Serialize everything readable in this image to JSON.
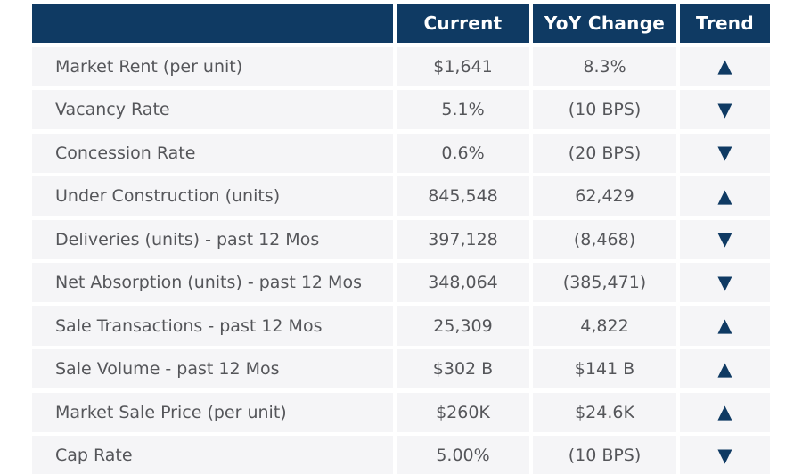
{
  "colors": {
    "header_navy": "#0f3a63",
    "row_bg": "#f5f5f7",
    "text_gray": "#55565a",
    "trend_navy": "#0f3a63",
    "gap_white": "#ffffff"
  },
  "table": {
    "columns": [
      "",
      "Current",
      "YoY Change",
      "Trend"
    ],
    "rows": [
      {
        "label": "Market Rent (per unit)",
        "current": "$1,641",
        "yoy": "8.3%",
        "trend": "up"
      },
      {
        "label": "Vacancy Rate",
        "current": "5.1%",
        "yoy": "(10 BPS)",
        "trend": "down"
      },
      {
        "label": "Concession Rate",
        "current": "0.6%",
        "yoy": "(20 BPS)",
        "trend": "down"
      },
      {
        "label": "Under Construction (units)",
        "current": "845,548",
        "yoy": "62,429",
        "trend": "up"
      },
      {
        "label": "Deliveries (units) - past 12 Mos",
        "current": "397,128",
        "yoy": "(8,468)",
        "trend": "down"
      },
      {
        "label": "Net Absorption (units) - past 12 Mos",
        "current": "348,064",
        "yoy": "(385,471)",
        "trend": "down"
      },
      {
        "label": "Sale Transactions - past 12 Mos",
        "current": "25,309",
        "yoy": "4,822",
        "trend": "up"
      },
      {
        "label": "Sale Volume - past 12 Mos",
        "current": "$302 B",
        "yoy": "$141 B",
        "trend": "up"
      },
      {
        "label": "Market Sale Price (per unit)",
        "current": "$260K",
        "yoy": "$24.6K",
        "trend": "up"
      },
      {
        "label": "Cap Rate",
        "current": "5.00%",
        "yoy": "(10 BPS)",
        "trend": "down"
      }
    ]
  },
  "icons": {
    "trend_up": "▲",
    "trend_down": "▼"
  }
}
